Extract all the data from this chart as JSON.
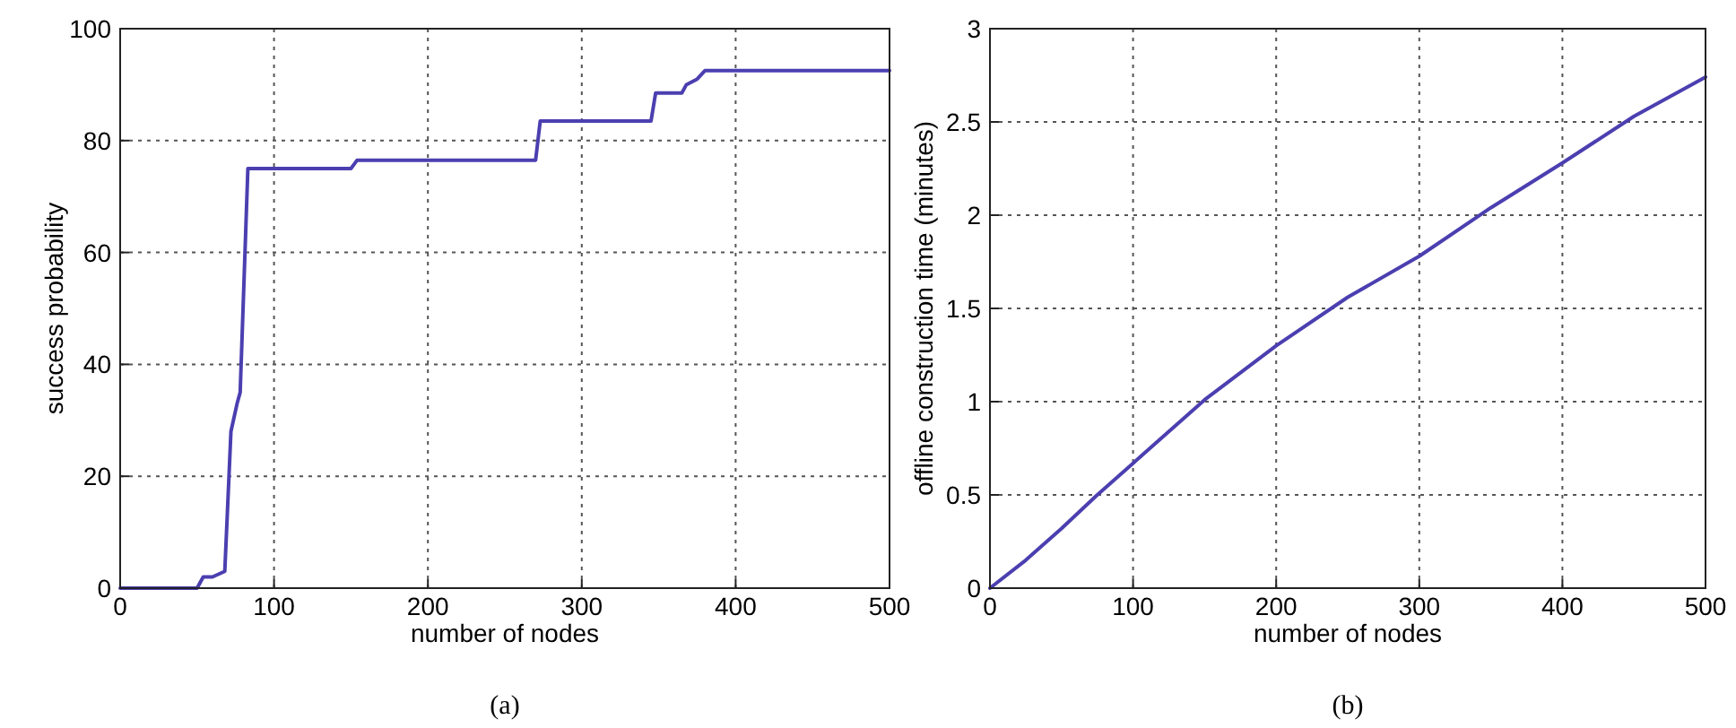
{
  "chart_data": [
    {
      "type": "line",
      "xlabel": "number of nodes",
      "ylabel": "success probability",
      "annotations": [
        "(a)"
      ],
      "series": [
        {
          "color": "#4b3fb0",
          "x": [
            0,
            50,
            54,
            60,
            68,
            72,
            76,
            78,
            83,
            150,
            154,
            270,
            273,
            345,
            348,
            365,
            368,
            375,
            380,
            500
          ],
          "values": [
            0,
            0,
            2,
            2,
            3,
            28,
            33,
            35,
            75,
            75,
            76.5,
            76.5,
            83.5,
            83.5,
            88.5,
            88.5,
            90,
            91,
            92.5,
            92.5
          ]
        }
      ],
      "xlim": [
        0,
        500
      ],
      "xticks": [
        0,
        100,
        200,
        300,
        400,
        500
      ],
      "ylim": [
        0,
        100
      ],
      "yticks": [
        0,
        20,
        40,
        60,
        80,
        100
      ],
      "grid": true,
      "line_style": "solid"
    },
    {
      "type": "line",
      "xlabel": "number of nodes",
      "ylabel": "offline construction time (minutes)",
      "annotations": [
        "(b)"
      ],
      "series": [
        {
          "color": "#4b3fb0",
          "x": [
            0,
            25,
            50,
            75,
            100,
            150,
            200,
            250,
            300,
            350,
            400,
            450,
            500
          ],
          "values": [
            0,
            0.15,
            0.32,
            0.5,
            0.67,
            1.01,
            1.3,
            1.56,
            1.78,
            2.04,
            2.28,
            2.53,
            2.74
          ]
        }
      ],
      "xlim": [
        0,
        500
      ],
      "xticks": [
        0,
        100,
        200,
        300,
        400,
        500
      ],
      "ylim": [
        0,
        3
      ],
      "yticks": [
        0,
        0.5,
        1,
        1.5,
        2,
        2.5,
        3
      ],
      "grid": true,
      "line_style": "solid"
    }
  ]
}
